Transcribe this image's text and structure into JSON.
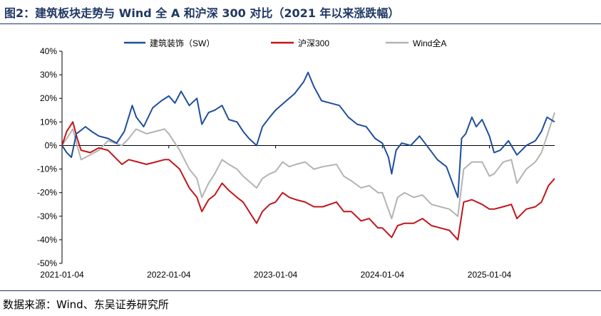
{
  "header": {
    "title": "图2：建筑板块走势与 Wind 全 A 和沪深 300 对比（2021 年以来涨跌幅）"
  },
  "footer": {
    "source": "数据来源：Wind、东吴证券研究所"
  },
  "chart_data": {
    "type": "line",
    "title": "图2：建筑板块走势与 Wind 全 A 和沪深 300 对比（2021 年以来涨跌幅）",
    "xlabel": "",
    "ylabel": "",
    "x_start": "2021-01-04",
    "x_end": "2025-08-15",
    "x_ticks": [
      {
        "date": "2021-01-04",
        "label": "2021-01-04"
      },
      {
        "date": "2022-01-04",
        "label": "2022-01-04"
      },
      {
        "date": "2023-01-04",
        "label": "2023-01-04"
      },
      {
        "date": "2024-01-04",
        "label": "2024-01-04"
      },
      {
        "date": "2025-01-04",
        "label": "2025-01-04"
      }
    ],
    "ylim": [
      -50,
      40
    ],
    "y_ticks": [
      -50,
      -40,
      -30,
      -20,
      -10,
      0,
      10,
      20,
      30,
      40
    ],
    "y_tick_labels": [
      "-50%",
      "-40%",
      "-30%",
      "-20%",
      "-10%",
      "0%",
      "10%",
      "20%",
      "30%",
      "40%"
    ],
    "grid": false,
    "legend_position": "top-center",
    "series": [
      {
        "name": "建筑装饰（SW）",
        "color": "#1f4e9c",
        "points": [
          [
            "2021-01-04",
            0
          ],
          [
            "2021-01-20",
            -3
          ],
          [
            "2021-02-05",
            -5
          ],
          [
            "2021-02-22",
            5
          ],
          [
            "2021-03-05",
            6
          ],
          [
            "2021-03-25",
            8
          ],
          [
            "2021-04-15",
            6
          ],
          [
            "2021-05-10",
            4
          ],
          [
            "2021-06-10",
            3
          ],
          [
            "2021-07-10",
            1
          ],
          [
            "2021-08-05",
            6
          ],
          [
            "2021-09-01",
            17
          ],
          [
            "2021-09-15",
            12
          ],
          [
            "2021-10-10",
            8
          ],
          [
            "2021-11-10",
            16
          ],
          [
            "2021-12-10",
            19
          ],
          [
            "2022-01-04",
            21
          ],
          [
            "2022-01-25",
            18
          ],
          [
            "2022-02-15",
            23
          ],
          [
            "2022-03-15",
            17
          ],
          [
            "2022-04-10",
            20
          ],
          [
            "2022-04-27",
            9
          ],
          [
            "2022-05-20",
            14
          ],
          [
            "2022-06-10",
            15
          ],
          [
            "2022-07-05",
            17
          ],
          [
            "2022-07-28",
            11
          ],
          [
            "2022-08-25",
            10
          ],
          [
            "2022-09-15",
            6
          ],
          [
            "2022-10-05",
            3
          ],
          [
            "2022-10-31",
            0
          ],
          [
            "2022-11-20",
            8
          ],
          [
            "2022-12-15",
            12
          ],
          [
            "2023-01-04",
            15
          ],
          [
            "2023-02-10",
            19
          ],
          [
            "2023-03-10",
            22
          ],
          [
            "2023-04-10",
            27
          ],
          [
            "2023-04-25",
            31
          ],
          [
            "2023-05-15",
            25
          ],
          [
            "2023-06-10",
            19
          ],
          [
            "2023-07-10",
            18
          ],
          [
            "2023-08-10",
            17
          ],
          [
            "2023-09-10",
            12
          ],
          [
            "2023-10-10",
            9
          ],
          [
            "2023-11-10",
            8
          ],
          [
            "2023-12-10",
            3
          ],
          [
            "2024-01-04",
            1
          ],
          [
            "2024-01-25",
            -5
          ],
          [
            "2024-02-05",
            -12
          ],
          [
            "2024-02-20",
            -2
          ],
          [
            "2024-03-10",
            1
          ],
          [
            "2024-04-10",
            0
          ],
          [
            "2024-05-10",
            4
          ],
          [
            "2024-06-10",
            -1
          ],
          [
            "2024-07-10",
            -6
          ],
          [
            "2024-08-10",
            -9
          ],
          [
            "2024-09-18",
            -22
          ],
          [
            "2024-10-01",
            3
          ],
          [
            "2024-10-15",
            5
          ],
          [
            "2024-11-05",
            12
          ],
          [
            "2024-11-20",
            8
          ],
          [
            "2024-12-10",
            11
          ],
          [
            "2025-01-04",
            4
          ],
          [
            "2025-01-20",
            -3
          ],
          [
            "2025-02-10",
            -2
          ],
          [
            "2025-03-10",
            2
          ],
          [
            "2025-04-08",
            -4
          ],
          [
            "2025-05-10",
            0
          ],
          [
            "2025-06-10",
            2
          ],
          [
            "2025-07-01",
            6
          ],
          [
            "2025-07-20",
            12
          ],
          [
            "2025-08-15",
            10
          ]
        ]
      },
      {
        "name": "沪深300",
        "color": "#c0161b",
        "points": [
          [
            "2021-01-04",
            0
          ],
          [
            "2021-01-20",
            6
          ],
          [
            "2021-02-10",
            10
          ],
          [
            "2021-02-25",
            3
          ],
          [
            "2021-03-10",
            -2
          ],
          [
            "2021-04-10",
            -3
          ],
          [
            "2021-05-10",
            -1
          ],
          [
            "2021-06-10",
            -2
          ],
          [
            "2021-07-28",
            -8
          ],
          [
            "2021-08-20",
            -6
          ],
          [
            "2021-09-20",
            -7
          ],
          [
            "2021-10-20",
            -8
          ],
          [
            "2021-11-20",
            -7
          ],
          [
            "2021-12-20",
            -6
          ],
          [
            "2022-01-04",
            -6
          ],
          [
            "2022-02-10",
            -10
          ],
          [
            "2022-03-15",
            -18
          ],
          [
            "2022-04-10",
            -22
          ],
          [
            "2022-04-27",
            -28
          ],
          [
            "2022-05-20",
            -23
          ],
          [
            "2022-06-10",
            -21
          ],
          [
            "2022-07-05",
            -16
          ],
          [
            "2022-07-28",
            -19
          ],
          [
            "2022-08-25",
            -22
          ],
          [
            "2022-09-15",
            -24
          ],
          [
            "2022-10-31",
            -33
          ],
          [
            "2022-11-20",
            -28
          ],
          [
            "2022-12-15",
            -25
          ],
          [
            "2023-01-04",
            -24
          ],
          [
            "2023-01-28",
            -20
          ],
          [
            "2023-02-20",
            -22
          ],
          [
            "2023-03-15",
            -23
          ],
          [
            "2023-04-15",
            -24
          ],
          [
            "2023-05-15",
            -26
          ],
          [
            "2023-06-15",
            -26
          ],
          [
            "2023-07-31",
            -24
          ],
          [
            "2023-08-25",
            -28
          ],
          [
            "2023-09-20",
            -28
          ],
          [
            "2023-10-23",
            -32
          ],
          [
            "2023-11-20",
            -31
          ],
          [
            "2023-12-20",
            -35
          ],
          [
            "2024-01-04",
            -35
          ],
          [
            "2024-02-05",
            -39
          ],
          [
            "2024-02-25",
            -34
          ],
          [
            "2024-03-20",
            -33
          ],
          [
            "2024-04-20",
            -33
          ],
          [
            "2024-05-20",
            -31
          ],
          [
            "2024-06-20",
            -34
          ],
          [
            "2024-07-20",
            -35
          ],
          [
            "2024-08-20",
            -36
          ],
          [
            "2024-09-18",
            -40
          ],
          [
            "2024-10-08",
            -24
          ],
          [
            "2024-11-05",
            -23
          ],
          [
            "2024-12-10",
            -25
          ],
          [
            "2025-01-04",
            -27
          ],
          [
            "2025-01-20",
            -27
          ],
          [
            "2025-02-20",
            -26
          ],
          [
            "2025-03-20",
            -25
          ],
          [
            "2025-04-08",
            -31
          ],
          [
            "2025-05-10",
            -27
          ],
          [
            "2025-06-10",
            -26
          ],
          [
            "2025-07-01",
            -24
          ],
          [
            "2025-07-25",
            -17
          ],
          [
            "2025-08-15",
            -14
          ]
        ]
      },
      {
        "name": "Wind全A",
        "color": "#b3b3b3",
        "points": [
          [
            "2021-01-04",
            0
          ],
          [
            "2021-01-20",
            3
          ],
          [
            "2021-02-10",
            7
          ],
          [
            "2021-02-25",
            0
          ],
          [
            "2021-03-10",
            -6
          ],
          [
            "2021-04-10",
            -4
          ],
          [
            "2021-05-10",
            -2
          ],
          [
            "2021-06-10",
            2
          ],
          [
            "2021-07-28",
            0
          ],
          [
            "2021-08-20",
            3
          ],
          [
            "2021-09-14",
            7
          ],
          [
            "2021-10-20",
            5
          ],
          [
            "2021-11-20",
            6
          ],
          [
            "2021-12-20",
            7
          ],
          [
            "2022-01-04",
            5
          ],
          [
            "2022-02-10",
            -2
          ],
          [
            "2022-03-15",
            -10
          ],
          [
            "2022-04-10",
            -14
          ],
          [
            "2022-04-27",
            -22
          ],
          [
            "2022-05-20",
            -16
          ],
          [
            "2022-06-10",
            -12
          ],
          [
            "2022-07-05",
            -6
          ],
          [
            "2022-07-28",
            -8
          ],
          [
            "2022-08-25",
            -10
          ],
          [
            "2022-09-15",
            -13
          ],
          [
            "2022-10-31",
            -18
          ],
          [
            "2022-11-20",
            -14
          ],
          [
            "2022-12-15",
            -12
          ],
          [
            "2023-01-04",
            -11
          ],
          [
            "2023-01-28",
            -7
          ],
          [
            "2023-02-20",
            -9
          ],
          [
            "2023-03-15",
            -8
          ],
          [
            "2023-04-15",
            -7
          ],
          [
            "2023-05-15",
            -10
          ],
          [
            "2023-06-15",
            -9
          ],
          [
            "2023-07-31",
            -8
          ],
          [
            "2023-08-25",
            -13
          ],
          [
            "2023-09-20",
            -15
          ],
          [
            "2023-10-23",
            -18
          ],
          [
            "2023-11-20",
            -17
          ],
          [
            "2023-12-20",
            -20
          ],
          [
            "2024-01-04",
            -20
          ],
          [
            "2024-02-05",
            -31
          ],
          [
            "2024-02-25",
            -22
          ],
          [
            "2024-03-20",
            -20
          ],
          [
            "2024-04-20",
            -22
          ],
          [
            "2024-05-20",
            -21
          ],
          [
            "2024-06-20",
            -25
          ],
          [
            "2024-07-20",
            -26
          ],
          [
            "2024-08-20",
            -27
          ],
          [
            "2024-09-18",
            -30
          ],
          [
            "2024-10-08",
            -10
          ],
          [
            "2024-11-05",
            -7
          ],
          [
            "2024-12-10",
            -7
          ],
          [
            "2025-01-04",
            -13
          ],
          [
            "2025-01-20",
            -12
          ],
          [
            "2025-02-20",
            -7
          ],
          [
            "2025-03-20",
            -6
          ],
          [
            "2025-04-08",
            -16
          ],
          [
            "2025-05-10",
            -10
          ],
          [
            "2025-06-10",
            -7
          ],
          [
            "2025-07-01",
            -3
          ],
          [
            "2025-07-25",
            6
          ],
          [
            "2025-08-15",
            14
          ]
        ]
      }
    ]
  }
}
